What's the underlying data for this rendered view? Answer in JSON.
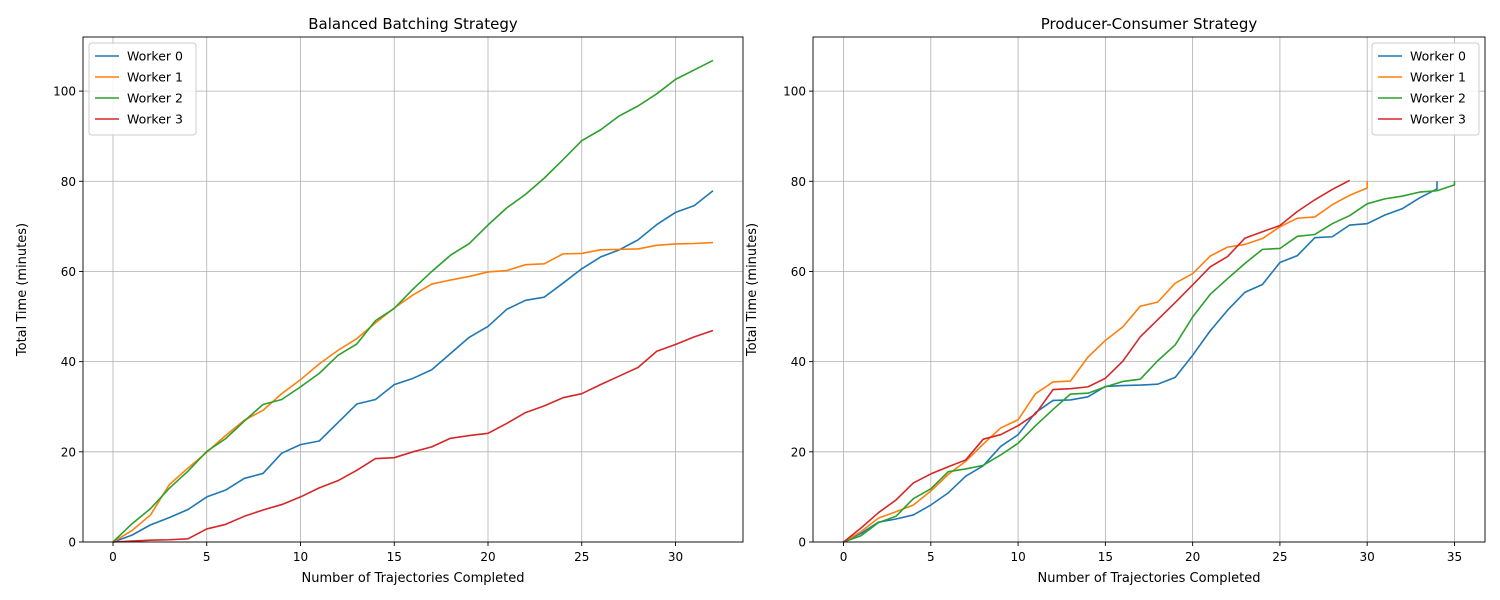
{
  "chart_data": [
    {
      "type": "line",
      "title": "Balanced Batching Strategy",
      "xlabel": "Number of Trajectories Completed",
      "ylabel": "Total Time (minutes)",
      "xlim": [
        -1.6,
        33.6
      ],
      "ylim": [
        0,
        112
      ],
      "xticks": [
        0,
        5,
        10,
        15,
        20,
        25,
        30
      ],
      "yticks": [
        0,
        20,
        40,
        60,
        80,
        100
      ],
      "grid": true,
      "legend": "top-left",
      "series": [
        {
          "name": "Worker 0",
          "color": "#1f77b4",
          "x": [
            0,
            1,
            2,
            3,
            4,
            5,
            6,
            7,
            8,
            9,
            10,
            11,
            12,
            13,
            14,
            15,
            16,
            17,
            18,
            19,
            20,
            21,
            22,
            23,
            24,
            25,
            26,
            27,
            28,
            29,
            30,
            31,
            32
          ],
          "y": [
            0,
            1.5,
            3.8,
            5.4,
            7.2,
            10.0,
            11.5,
            14.1,
            15.2,
            19.7,
            21.6,
            22.4,
            26.5,
            30.6,
            31.6,
            34.9,
            36.3,
            38.2,
            41.8,
            45.4,
            47.8,
            51.6,
            53.6,
            54.3,
            57.4,
            60.6,
            63.2,
            64.8,
            67.0,
            70.4,
            73.1,
            74.6,
            77.9
          ]
        },
        {
          "name": "Worker 1",
          "color": "#ff7f0e",
          "x": [
            0,
            1,
            2,
            3,
            4,
            5,
            6,
            7,
            8,
            9,
            10,
            11,
            12,
            13,
            14,
            15,
            16,
            17,
            18,
            19,
            20,
            21,
            22,
            23,
            24,
            25,
            26,
            27,
            28,
            29,
            30,
            31,
            32
          ],
          "y": [
            0,
            2.5,
            6.0,
            12.7,
            16.4,
            19.9,
            23.6,
            27.0,
            29.2,
            32.9,
            36.0,
            39.5,
            42.5,
            45.1,
            48.6,
            51.9,
            54.8,
            57.2,
            58.1,
            58.9,
            59.9,
            60.2,
            61.5,
            61.7,
            63.9,
            64.0,
            64.8,
            64.9,
            65.0,
            65.8,
            66.1,
            66.2,
            66.4
          ]
        },
        {
          "name": "Worker 2",
          "color": "#2ca02c",
          "x": [
            0,
            1,
            2,
            3,
            4,
            5,
            6,
            7,
            8,
            9,
            10,
            11,
            12,
            13,
            14,
            15,
            16,
            17,
            18,
            19,
            20,
            21,
            22,
            23,
            24,
            25,
            26,
            27,
            28,
            29,
            30,
            31,
            32
          ],
          "y": [
            0,
            4.0,
            7.4,
            11.9,
            15.7,
            20.1,
            22.9,
            26.8,
            30.5,
            31.6,
            34.4,
            37.4,
            41.4,
            43.9,
            49.1,
            51.8,
            56.1,
            60.0,
            63.6,
            66.2,
            70.3,
            74.1,
            77.1,
            80.7,
            84.8,
            89.0,
            91.4,
            94.5,
            96.7,
            99.4,
            102.6,
            104.7,
            106.8
          ]
        },
        {
          "name": "Worker 3",
          "color": "#d62728",
          "x": [
            0,
            1,
            2,
            3,
            4,
            5,
            6,
            7,
            8,
            9,
            10,
            11,
            12,
            13,
            14,
            15,
            16,
            17,
            18,
            19,
            20,
            21,
            22,
            23,
            24,
            25,
            26,
            27,
            28,
            29,
            30,
            31,
            32
          ],
          "y": [
            0,
            0.2,
            0.4,
            0.5,
            0.7,
            2.9,
            3.9,
            5.7,
            7.1,
            8.3,
            10.0,
            12.0,
            13.6,
            15.9,
            18.5,
            18.7,
            20.0,
            21.1,
            23.0,
            23.6,
            24.1,
            26.3,
            28.7,
            30.2,
            32.0,
            32.9,
            34.9,
            36.8,
            38.7,
            42.3,
            43.8,
            45.5,
            46.9
          ]
        }
      ]
    },
    {
      "type": "line",
      "title": "Producer-Consumer Strategy",
      "xlabel": "Number of Trajectories Completed",
      "ylabel": "Total Time (minutes)",
      "xlim": [
        -1.75,
        36.75
      ],
      "ylim": [
        0,
        112
      ],
      "xticks": [
        0,
        5,
        10,
        15,
        20,
        25,
        30,
        35
      ],
      "yticks": [
        0,
        20,
        40,
        60,
        80,
        100
      ],
      "grid": true,
      "legend": "top-right",
      "series": [
        {
          "name": "Worker 0",
          "color": "#1f77b4",
          "x": [
            0,
            1,
            2,
            3,
            4,
            5,
            6,
            7,
            8,
            9,
            10,
            11,
            12,
            13,
            14,
            15,
            16,
            17,
            18,
            19,
            20,
            21,
            22,
            23,
            24,
            25,
            26,
            27,
            28,
            29,
            30,
            31,
            32,
            33,
            34,
            34
          ],
          "y": [
            0,
            1.9,
            4.4,
            5.1,
            6.0,
            8.2,
            10.9,
            14.6,
            16.9,
            21.2,
            23.8,
            28.7,
            31.4,
            31.5,
            32.2,
            34.5,
            34.7,
            34.8,
            35.0,
            36.5,
            41.4,
            46.8,
            51.4,
            55.4,
            57.1,
            62.0,
            63.5,
            67.5,
            67.7,
            70.3,
            70.6,
            72.5,
            73.9,
            76.3,
            78.3,
            80.0
          ]
        },
        {
          "name": "Worker 1",
          "color": "#ff7f0e",
          "x": [
            0,
            1,
            2,
            3,
            4,
            5,
            6,
            7,
            8,
            9,
            10,
            11,
            12,
            13,
            14,
            15,
            16,
            17,
            18,
            19,
            20,
            21,
            22,
            23,
            24,
            25,
            26,
            27,
            28,
            29,
            30,
            30
          ],
          "y": [
            0,
            2.3,
            5.3,
            6.7,
            8.2,
            11.3,
            15.0,
            17.9,
            21.7,
            25.3,
            27.1,
            32.9,
            35.5,
            35.7,
            41.0,
            44.7,
            47.7,
            52.3,
            53.2,
            57.4,
            59.5,
            63.4,
            65.4,
            66.0,
            67.3,
            69.9,
            71.8,
            72.1,
            74.8,
            76.9,
            78.5,
            80.0
          ]
        },
        {
          "name": "Worker 2",
          "color": "#2ca02c",
          "x": [
            0,
            1,
            2,
            3,
            4,
            5,
            6,
            7,
            8,
            9,
            10,
            11,
            12,
            13,
            14,
            15,
            16,
            17,
            18,
            19,
            20,
            21,
            22,
            23,
            24,
            25,
            26,
            27,
            28,
            29,
            30,
            31,
            32,
            33,
            34,
            35,
            35
          ],
          "y": [
            0,
            1.4,
            4.3,
            5.7,
            9.6,
            11.8,
            15.6,
            16.2,
            17.0,
            19.3,
            21.9,
            25.8,
            29.4,
            32.8,
            33.0,
            34.4,
            35.6,
            36.1,
            40.2,
            43.7,
            49.9,
            54.9,
            58.4,
            61.8,
            64.9,
            65.1,
            67.8,
            68.2,
            70.6,
            72.4,
            75.0,
            76.1,
            76.7,
            77.6,
            77.9,
            79.2,
            80.0
          ]
        },
        {
          "name": "Worker 3",
          "color": "#d62728",
          "x": [
            0,
            1,
            2,
            3,
            4,
            5,
            6,
            7,
            8,
            9,
            10,
            11,
            12,
            13,
            14,
            15,
            16,
            17,
            18,
            19,
            20,
            21,
            22,
            23,
            24,
            25,
            26,
            27,
            28,
            29
          ],
          "y": [
            0,
            3.1,
            6.5,
            9.3,
            13.1,
            15.1,
            16.7,
            18.2,
            22.8,
            23.8,
            25.8,
            28.4,
            33.8,
            34.0,
            34.4,
            36.3,
            40.1,
            45.5,
            49.3,
            53.1,
            57.0,
            61.0,
            63.3,
            67.4,
            68.8,
            70.2,
            73.3,
            75.9,
            78.2,
            80.2
          ]
        }
      ]
    }
  ]
}
